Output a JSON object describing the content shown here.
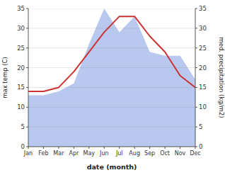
{
  "chart_data": {
    "type": "line",
    "xlabel": "date (month)",
    "ylabel": "max temp (C)",
    "y2label": "med. precipitation (kg/m2)",
    "categories": [
      "Jan",
      "Feb",
      "Mar",
      "Apr",
      "May",
      "Jun",
      "Jul",
      "Aug",
      "Sep",
      "Oct",
      "Nov",
      "Dec"
    ],
    "series": [
      {
        "type": "line",
        "color": "#cc3333",
        "values": [
          14,
          14,
          15,
          19,
          24,
          29,
          33,
          33,
          28,
          24,
          18,
          15
        ]
      },
      {
        "type": "area",
        "color": "#b8c8ee",
        "axis": "y2",
        "values": [
          13,
          13,
          14,
          16,
          26,
          35,
          29,
          33,
          24,
          23,
          23,
          17
        ]
      }
    ],
    "ylim": [
      0,
      35
    ],
    "yticks": [
      0,
      5,
      10,
      15,
      20,
      25,
      30,
      35
    ],
    "y2lim": [
      0,
      35
    ],
    "y2ticks": [
      0,
      5,
      10,
      15,
      20,
      25,
      30,
      35
    ],
    "grid": true
  }
}
